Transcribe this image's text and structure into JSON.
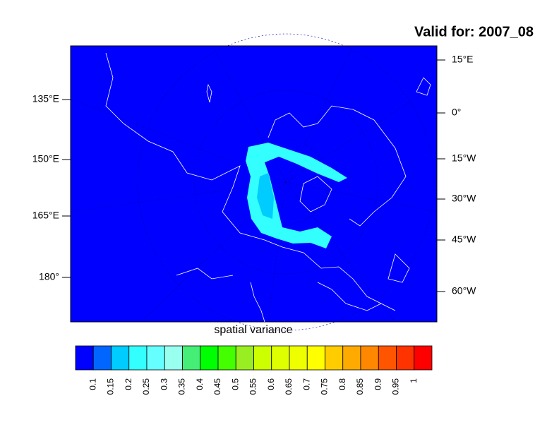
{
  "title": "Valid for: 2007_08",
  "map": {
    "left_labels": [
      "135°E",
      "150°E",
      "165°E",
      "180°"
    ],
    "right_labels": [
      "15°E",
      "0°",
      "15°W",
      "30°W",
      "45°W",
      "60°W"
    ],
    "x_label": "spatial variance"
  },
  "colorbar": {
    "levels": [
      0.1,
      0.15,
      0.2,
      0.25,
      0.3,
      0.35,
      0.4,
      0.45,
      0.5,
      0.55,
      0.6,
      0.65,
      0.7,
      0.75,
      0.8,
      0.85,
      0.9,
      0.95,
      1
    ],
    "colors": [
      "#0000ff",
      "#0066ff",
      "#00ccff",
      "#33ffff",
      "#66ffff",
      "#99ffee",
      "#44ee77",
      "#00ff00",
      "#44ff00",
      "#99ee22",
      "#ccff00",
      "#ddff00",
      "#eeff00",
      "#ffff00",
      "#ffcc00",
      "#ffaa00",
      "#ff8800",
      "#ff5500",
      "#ff3300",
      "#ff0000"
    ]
  }
}
